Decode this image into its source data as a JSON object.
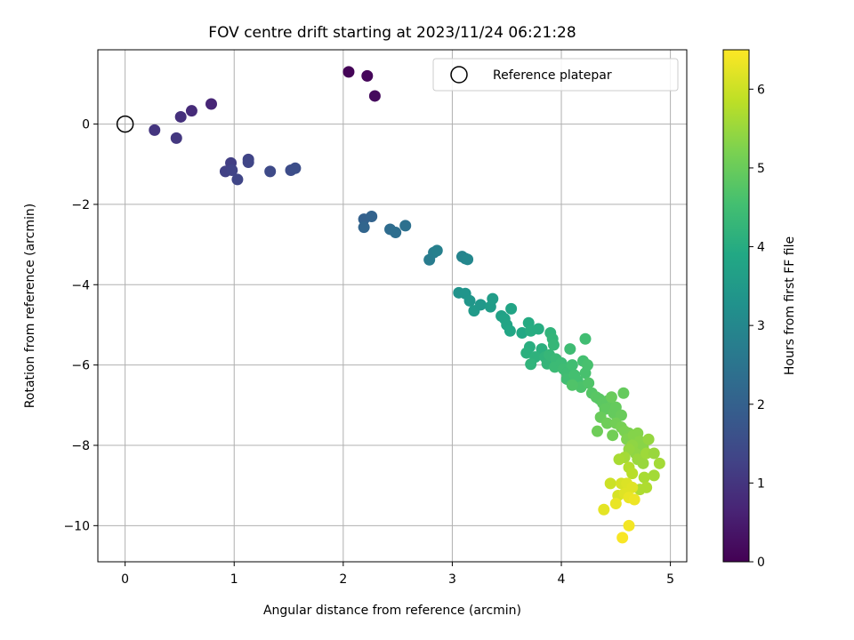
{
  "chart_data": {
    "type": "scatter",
    "title": "FOV centre drift starting at 2023/11/24 06:21:28",
    "xlabel": "Angular distance from reference (arcmin)",
    "ylabel": "Rotation from reference (arcmin)",
    "xlim": [
      -0.25,
      5.15
    ],
    "ylim": [
      -10.9,
      1.85
    ],
    "xticks": [
      0,
      1,
      2,
      3,
      4,
      5
    ],
    "xtick_labels": [
      "0",
      "1",
      "2",
      "3",
      "4",
      "5"
    ],
    "yticks": [
      0,
      -2,
      -4,
      -6,
      -8,
      -10
    ],
    "ytick_labels": [
      "0",
      "−2",
      "−4",
      "−6",
      "−8",
      "−10"
    ],
    "grid": true,
    "colormap": "viridis",
    "colorbar": {
      "label": "Hours from first FF file",
      "range": [
        0,
        6.5
      ],
      "ticks": [
        0,
        1,
        2,
        3,
        4,
        5,
        6
      ],
      "tick_labels": [
        "0",
        "1",
        "2",
        "3",
        "4",
        "5",
        "6"
      ]
    },
    "legend": {
      "position": "top-right",
      "entries": [
        "Reference platepar"
      ]
    },
    "reference_point": {
      "x": 0,
      "y": 0
    },
    "points": [
      [
        2.05,
        1.3,
        0.05
      ],
      [
        2.22,
        1.2,
        0.12
      ],
      [
        2.29,
        0.7,
        0.18
      ],
      [
        0.79,
        0.5,
        0.7
      ],
      [
        0.61,
        0.33,
        0.8
      ],
      [
        0.51,
        0.18,
        0.9
      ],
      [
        0.27,
        -0.15,
        1.0
      ],
      [
        0.47,
        -0.35,
        1.05
      ],
      [
        0.97,
        -0.97,
        1.2
      ],
      [
        0.92,
        -1.18,
        1.25
      ],
      [
        0.98,
        -1.15,
        1.3
      ],
      [
        1.03,
        -1.38,
        1.35
      ],
      [
        1.13,
        -0.88,
        1.3
      ],
      [
        1.13,
        -0.95,
        1.35
      ],
      [
        1.33,
        -1.18,
        1.45
      ],
      [
        1.52,
        -1.15,
        1.5
      ],
      [
        1.56,
        -1.1,
        1.55
      ],
      [
        2.19,
        -2.37,
        2.0
      ],
      [
        2.26,
        -2.3,
        2.05
      ],
      [
        2.19,
        -2.57,
        2.1
      ],
      [
        2.43,
        -2.62,
        2.3
      ],
      [
        2.48,
        -2.7,
        2.35
      ],
      [
        2.57,
        -2.53,
        2.4
      ],
      [
        2.79,
        -3.38,
        2.7
      ],
      [
        2.83,
        -3.2,
        2.75
      ],
      [
        2.86,
        -3.15,
        2.8
      ],
      [
        3.09,
        -3.3,
        2.9
      ],
      [
        3.12,
        -3.35,
        2.95
      ],
      [
        3.14,
        -3.37,
        3.0
      ],
      [
        3.06,
        -4.2,
        3.3
      ],
      [
        3.12,
        -4.22,
        3.35
      ],
      [
        3.16,
        -4.4,
        3.4
      ],
      [
        3.2,
        -4.65,
        3.5
      ],
      [
        3.26,
        -4.5,
        3.45
      ],
      [
        3.35,
        -4.55,
        3.55
      ],
      [
        3.37,
        -4.35,
        3.6
      ],
      [
        3.45,
        -4.78,
        3.7
      ],
      [
        3.48,
        -4.85,
        3.75
      ],
      [
        3.5,
        -5.0,
        3.8
      ],
      [
        3.53,
        -5.15,
        3.85
      ],
      [
        3.54,
        -4.6,
        3.8
      ],
      [
        3.64,
        -5.2,
        3.9
      ],
      [
        3.7,
        -4.95,
        3.95
      ],
      [
        3.72,
        -5.15,
        4.0
      ],
      [
        3.79,
        -5.1,
        4.0
      ],
      [
        3.71,
        -5.55,
        4.05
      ],
      [
        3.68,
        -5.7,
        4.1
      ],
      [
        3.82,
        -5.6,
        4.1
      ],
      [
        3.76,
        -5.8,
        4.15
      ],
      [
        3.85,
        -5.8,
        4.2
      ],
      [
        3.72,
        -5.98,
        4.2
      ],
      [
        3.87,
        -5.97,
        4.25
      ],
      [
        3.9,
        -5.2,
        4.2
      ],
      [
        3.92,
        -5.35,
        4.25
      ],
      [
        3.93,
        -5.5,
        4.3
      ],
      [
        3.89,
        -5.75,
        4.3
      ],
      [
        3.95,
        -5.85,
        4.35
      ],
      [
        3.94,
        -6.05,
        4.4
      ],
      [
        4.0,
        -5.95,
        4.4
      ],
      [
        4.02,
        -6.1,
        4.45
      ],
      [
        4.05,
        -6.2,
        4.45
      ],
      [
        4.08,
        -5.6,
        4.45
      ],
      [
        4.1,
        -6.0,
        4.5
      ],
      [
        4.05,
        -6.35,
        4.5
      ],
      [
        4.12,
        -6.25,
        4.55
      ],
      [
        4.15,
        -6.4,
        4.55
      ],
      [
        4.2,
        -5.9,
        4.55
      ],
      [
        4.22,
        -5.35,
        4.5
      ],
      [
        4.24,
        -6.0,
        4.6
      ],
      [
        4.22,
        -6.2,
        4.6
      ],
      [
        4.18,
        -6.55,
        4.65
      ],
      [
        4.25,
        -6.45,
        4.7
      ],
      [
        4.1,
        -6.5,
        4.7
      ],
      [
        4.28,
        -6.7,
        4.75
      ],
      [
        4.32,
        -6.8,
        4.8
      ],
      [
        4.35,
        -6.85,
        4.8
      ],
      [
        4.38,
        -6.95,
        4.85
      ],
      [
        4.42,
        -6.9,
        4.85
      ],
      [
        4.45,
        -7.05,
        4.9
      ],
      [
        4.4,
        -7.1,
        4.9
      ],
      [
        4.48,
        -7.2,
        4.95
      ],
      [
        4.5,
        -7.05,
        4.95
      ],
      [
        4.55,
        -7.25,
        5.0
      ],
      [
        4.57,
        -6.7,
        4.95
      ],
      [
        4.46,
        -6.8,
        5.0
      ],
      [
        4.36,
        -7.3,
        5.0
      ],
      [
        4.33,
        -7.65,
        5.05
      ],
      [
        4.42,
        -7.45,
        5.05
      ],
      [
        4.5,
        -7.45,
        5.1
      ],
      [
        4.47,
        -7.75,
        5.1
      ],
      [
        4.55,
        -7.55,
        5.15
      ],
      [
        4.58,
        -7.65,
        5.2
      ],
      [
        4.62,
        -7.7,
        5.2
      ],
      [
        4.6,
        -7.85,
        5.25
      ],
      [
        4.66,
        -7.75,
        5.3
      ],
      [
        4.7,
        -7.7,
        5.3
      ],
      [
        4.72,
        -7.9,
        5.35
      ],
      [
        4.75,
        -8.05,
        5.35
      ],
      [
        4.65,
        -8.0,
        5.4
      ],
      [
        4.68,
        -8.2,
        5.4
      ],
      [
        4.62,
        -8.1,
        5.45
      ],
      [
        4.7,
        -8.35,
        5.5
      ],
      [
        4.75,
        -8.45,
        5.5
      ],
      [
        4.78,
        -8.2,
        5.55
      ],
      [
        4.8,
        -7.85,
        5.45
      ],
      [
        4.85,
        -8.2,
        5.5
      ],
      [
        4.9,
        -8.45,
        5.6
      ],
      [
        4.85,
        -8.75,
        5.6
      ],
      [
        4.76,
        -8.8,
        5.65
      ],
      [
        4.78,
        -9.05,
        5.7
      ],
      [
        4.72,
        -9.1,
        5.7
      ],
      [
        4.58,
        -8.3,
        5.6
      ],
      [
        4.53,
        -8.35,
        5.65
      ],
      [
        4.62,
        -8.55,
        5.75
      ],
      [
        4.65,
        -8.7,
        5.8
      ],
      [
        4.45,
        -8.95,
        6.0
      ],
      [
        4.55,
        -8.95,
        6.1
      ],
      [
        4.6,
        -8.95,
        6.15
      ],
      [
        4.65,
        -9.05,
        6.2
      ],
      [
        4.52,
        -9.25,
        6.1
      ],
      [
        4.58,
        -9.2,
        6.2
      ],
      [
        4.62,
        -9.3,
        6.3
      ],
      [
        4.67,
        -9.35,
        6.35
      ],
      [
        4.5,
        -9.45,
        6.3
      ],
      [
        4.39,
        -9.6,
        6.25
      ],
      [
        4.62,
        -10.0,
        6.4
      ],
      [
        4.56,
        -10.3,
        6.45
      ]
    ]
  }
}
